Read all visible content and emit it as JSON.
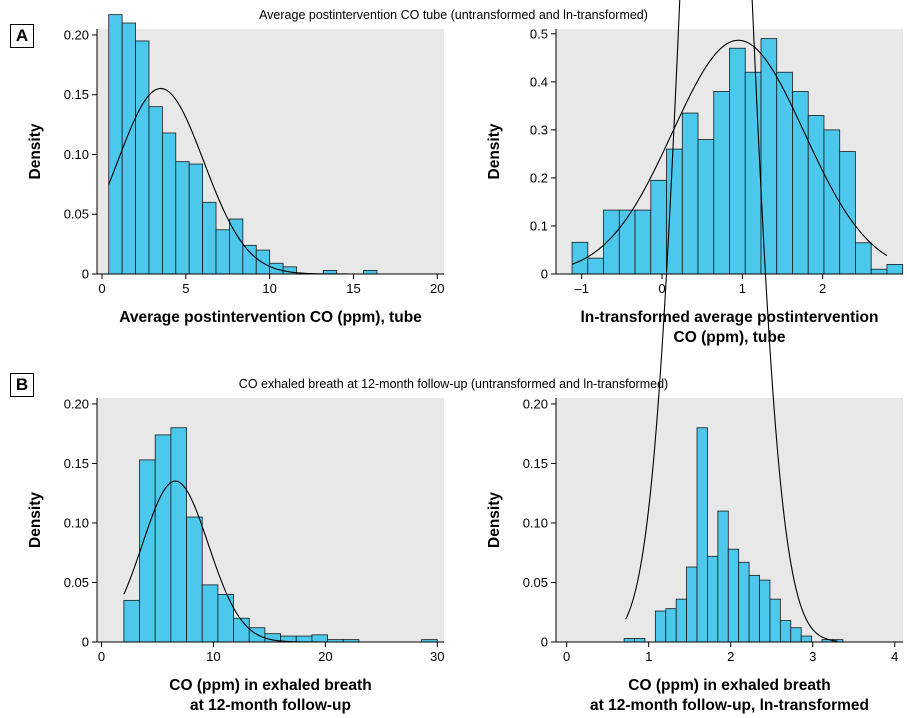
{
  "panels": [
    {
      "label": "A",
      "title": "Average postintervention CO tube (untransformed and ln-transformed)"
    },
    {
      "label": "B",
      "title": "CO exhaled breath at 12-month follow-up (untransformed and ln-transformed)"
    }
  ],
  "colors": {
    "bar_fill": "#4cc8ec",
    "bar_stroke": "#1a1a1a",
    "plot_bg": "#e8e8e8",
    "curve": "#000000"
  },
  "chart_data": [
    {
      "type": "bar",
      "panel": "A",
      "ylabel": "Density",
      "xlabel": [
        "Average postintervention CO (ppm), tube"
      ],
      "xlim": [
        -0.3,
        20.4
      ],
      "ylim": [
        0,
        0.205
      ],
      "xticks": [
        0,
        5,
        10,
        15,
        20
      ],
      "yticks": [
        0,
        0.05,
        0.1,
        0.15,
        0.2
      ],
      "ytick_labels": [
        "0",
        "0.05",
        "0.10",
        "0.15",
        "0.20"
      ],
      "bin_start": 0.4,
      "bin_width": 0.8,
      "values": [
        0.217,
        0.21,
        0.195,
        0.14,
        0.118,
        0.094,
        0.092,
        0.06,
        0.037,
        0.046,
        0.024,
        0.02,
        0.009,
        0.006,
        0.0,
        0.0,
        0.003,
        0.0,
        0.0,
        0.003
      ],
      "normal_curve": {
        "mean": 3.5,
        "sd": 2.57,
        "x_range": [
          0.4,
          19.5
        ]
      },
      "grid": false
    },
    {
      "type": "bar",
      "panel": "A",
      "ylabel": "Density",
      "xlabel": [
        "ln-transformed average postintervention",
        "CO (ppm), tube"
      ],
      "xlim": [
        -1.32,
        3.0
      ],
      "ylim": [
        0,
        0.51
      ],
      "xticks": [
        -1,
        0,
        1,
        2
      ],
      "yticks": [
        0,
        0.1,
        0.2,
        0.3,
        0.4,
        0.5
      ],
      "ytick_labels": [
        "0",
        "0.1",
        "0.2",
        "0.3",
        "0.4",
        "0.5"
      ],
      "xtick_labels": [
        "–1",
        "0",
        "1",
        "2"
      ],
      "bin_start": -1.12,
      "bin_width": 0.196,
      "values": [
        0.066,
        0.033,
        0.133,
        0.133,
        0.133,
        0.195,
        0.26,
        0.335,
        0.28,
        0.38,
        0.47,
        0.42,
        0.49,
        0.42,
        0.38,
        0.33,
        0.3,
        0.255,
        0.065,
        0.01,
        0.02
      ],
      "normal_curve": {
        "mean": 0.95,
        "sd": 0.82,
        "x_range": [
          -1.12,
          2.8
        ]
      },
      "grid": false
    },
    {
      "type": "bar",
      "panel": "B",
      "ylabel": "Density",
      "xlabel": [
        "CO (ppm) in exhaled breath",
        "at 12-month follow-up"
      ],
      "xlim": [
        -0.4,
        30.6
      ],
      "ylim": [
        0,
        0.205
      ],
      "xticks": [
        0,
        10,
        20,
        30
      ],
      "yticks": [
        0,
        0.05,
        0.1,
        0.15,
        0.2
      ],
      "ytick_labels": [
        "0",
        "0.05",
        "0.10",
        "0.15",
        "0.20"
      ],
      "bin_start": 2.0,
      "bin_width": 1.4,
      "values": [
        0.035,
        0.153,
        0.174,
        0.18,
        0.105,
        0.048,
        0.04,
        0.02,
        0.012,
        0.007,
        0.005,
        0.005,
        0.006,
        0.002,
        0.002,
        0.0,
        0.0,
        0.0,
        0.0,
        0.002
      ],
      "normal_curve": {
        "mean": 6.6,
        "sd": 2.95,
        "x_range": [
          2.0,
          28.5
        ]
      },
      "grid": false
    },
    {
      "type": "bar",
      "panel": "B",
      "ylabel": "Density",
      "xlabel": [
        "CO (ppm) in exhaled breath",
        "at 12-month follow-up, ln-transformed"
      ],
      "xlim": [
        -0.13,
        4.1
      ],
      "ylim": [
        0,
        0.205
      ],
      "xticks": [
        0,
        1,
        2,
        3,
        4
      ],
      "yticks": [
        0,
        0.05,
        0.1,
        0.15,
        0.2
      ],
      "ytick_labels": [
        "0",
        "0.05",
        "0.10",
        "0.15",
        "0.20"
      ],
      "bin_start": 0.7,
      "bin_width": 0.127,
      "values": [
        0.003,
        0.003,
        0.0,
        0.026,
        0.028,
        0.036,
        0.063,
        0.18,
        0.072,
        0.11,
        0.078,
        0.067,
        0.056,
        0.052,
        0.036,
        0.018,
        0.012,
        0.005,
        0.0,
        0.002,
        0.002
      ],
      "normal_curve": {
        "mean": 1.82,
        "sd": 0.39,
        "x_range": [
          0.72,
          3.3
        ]
      },
      "grid": false
    }
  ]
}
